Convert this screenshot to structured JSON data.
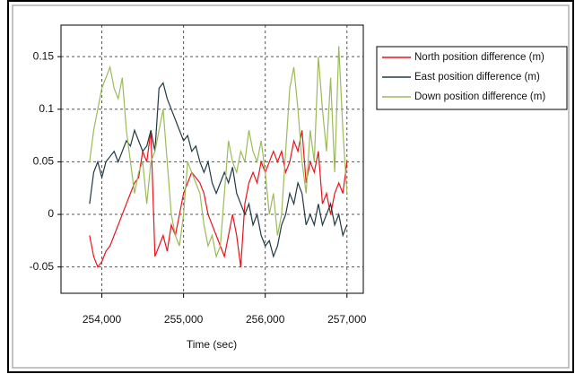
{
  "chart_data": {
    "type": "line",
    "x_label": "Time (sec)",
    "x": [
      253850,
      253900,
      253950,
      254000,
      254050,
      254100,
      254150,
      254200,
      254250,
      254300,
      254350,
      254400,
      254450,
      254500,
      254550,
      254600,
      254650,
      254700,
      254750,
      254800,
      254850,
      254900,
      254950,
      255000,
      255050,
      255100,
      255150,
      255200,
      255250,
      255300,
      255350,
      255400,
      255450,
      255500,
      255550,
      255600,
      255650,
      255700,
      255750,
      255800,
      255850,
      255900,
      255950,
      256000,
      256050,
      256100,
      256150,
      256200,
      256250,
      256300,
      256350,
      256400,
      256450,
      256500,
      256550,
      256600,
      256650,
      256700,
      256750,
      256800,
      256850,
      256900,
      256950,
      257000
    ],
    "series": [
      {
        "name": "North position difference (m)",
        "color": "#e8141a",
        "values": [
          -0.02,
          -0.04,
          -0.05,
          -0.045,
          -0.035,
          -0.03,
          -0.02,
          -0.01,
          0.0,
          0.01,
          0.02,
          0.03,
          0.035,
          0.06,
          0.05,
          0.08,
          -0.04,
          -0.03,
          -0.02,
          -0.035,
          -0.01,
          -0.02,
          0.0,
          0.02,
          0.03,
          0.04,
          0.035,
          0.03,
          0.02,
          0.0,
          -0.01,
          -0.02,
          -0.03,
          -0.04,
          -0.02,
          0.0,
          -0.02,
          -0.05,
          0.01,
          0.03,
          0.04,
          0.03,
          0.05,
          0.04,
          0.05,
          0.06,
          0.05,
          0.06,
          0.04,
          0.05,
          0.07,
          0.06,
          0.08,
          0.03,
          0.05,
          0.04,
          0.06,
          0.01,
          0.02,
          0.0,
          0.02,
          0.03,
          0.02,
          0.05
        ]
      },
      {
        "name": "East position difference (m)",
        "color": "#1f3a44",
        "values": [
          0.01,
          0.04,
          0.05,
          0.035,
          0.05,
          0.055,
          0.06,
          0.05,
          0.06,
          0.07,
          0.065,
          0.08,
          0.07,
          0.06,
          0.065,
          0.08,
          0.06,
          0.12,
          0.125,
          0.11,
          0.1,
          0.09,
          0.08,
          0.07,
          0.075,
          0.06,
          0.065,
          0.05,
          0.04,
          0.05,
          0.03,
          0.02,
          0.03,
          0.04,
          0.03,
          0.045,
          0.02,
          0.01,
          0.0,
          0.01,
          -0.01,
          0.0,
          -0.02,
          -0.03,
          -0.025,
          -0.04,
          -0.03,
          -0.01,
          0.0,
          0.02,
          0.01,
          0.03,
          0.02,
          -0.01,
          0.0,
          -0.01,
          0.01,
          -0.01,
          0.0,
          0.01,
          -0.01,
          0.0,
          -0.02,
          -0.01
        ]
      },
      {
        "name": "Down position difference (m)",
        "color": "#9bbb59",
        "values": [
          0.05,
          0.08,
          0.1,
          0.12,
          0.13,
          0.14,
          0.12,
          0.11,
          0.13,
          0.08,
          0.05,
          0.02,
          0.04,
          0.05,
          0.01,
          0.05,
          0.06,
          0.08,
          0.1,
          0.05,
          0.0,
          -0.02,
          -0.03,
          0.0,
          0.05,
          0.04,
          0.03,
          0.02,
          -0.01,
          -0.03,
          -0.02,
          -0.04,
          -0.03,
          0.02,
          0.07,
          0.05,
          0.04,
          0.06,
          0.05,
          0.08,
          0.06,
          0.05,
          0.07,
          0.04,
          0.0,
          0.02,
          -0.02,
          0.0,
          0.06,
          0.12,
          0.14,
          0.1,
          0.05,
          0.02,
          0.08,
          0.05,
          0.15,
          0.1,
          0.06,
          0.13,
          0.04,
          0.16,
          0.08,
          0.02
        ]
      }
    ],
    "xlim": [
      253500,
      257200
    ],
    "xticks": [
      {
        "value": 254000,
        "label": "254,000"
      },
      {
        "value": 255000,
        "label": "255,000"
      },
      {
        "value": 256000,
        "label": "256,000"
      },
      {
        "value": 257000,
        "label": "257,000"
      }
    ],
    "ylim": [
      -0.075,
      0.18
    ],
    "yticks": [
      -0.05,
      0,
      0.05,
      0.1,
      0.15
    ],
    "grid": true,
    "legend": "right"
  }
}
